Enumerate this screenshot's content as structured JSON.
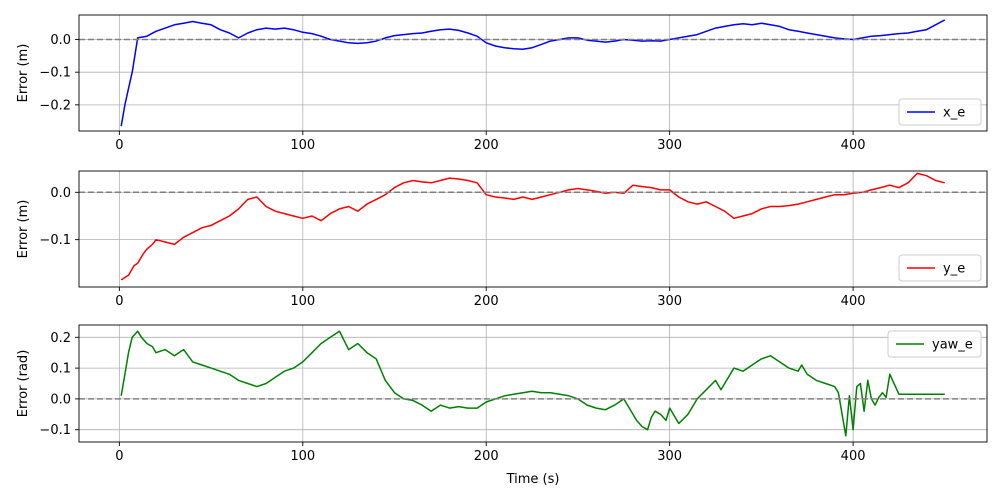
{
  "chart_data": [
    {
      "type": "line",
      "xlabel": "",
      "ylabel": "Error (m)",
      "xlim": [
        -22,
        473
      ],
      "ylim": [
        -0.28,
        0.075
      ],
      "xticks": [
        0,
        100,
        200,
        300,
        400
      ],
      "xtick_labels": [
        "0",
        "100",
        "200",
        "300",
        "400"
      ],
      "yticks": [
        0.0,
        -0.1,
        -0.2
      ],
      "ytick_labels": [
        "0.0",
        "−0.1",
        "−0.2"
      ],
      "grid": true,
      "reference_line": 0,
      "legend_position": "lower-right",
      "series": [
        {
          "name": "x_e",
          "color": "#0000ff",
          "x": [
            1,
            3,
            5,
            7,
            10,
            15,
            20,
            25,
            30,
            35,
            40,
            45,
            50,
            55,
            60,
            65,
            70,
            75,
            80,
            85,
            90,
            95,
            100,
            105,
            110,
            115,
            120,
            125,
            130,
            135,
            140,
            145,
            150,
            155,
            160,
            165,
            170,
            175,
            180,
            185,
            190,
            195,
            200,
            205,
            210,
            215,
            220,
            225,
            230,
            235,
            240,
            245,
            250,
            255,
            260,
            265,
            270,
            275,
            280,
            285,
            290,
            295,
            300,
            305,
            310,
            315,
            320,
            325,
            330,
            335,
            340,
            345,
            350,
            355,
            360,
            365,
            370,
            375,
            380,
            385,
            390,
            395,
            400,
            405,
            410,
            415,
            420,
            425,
            430,
            435,
            440,
            445,
            450
          ],
          "values": [
            -0.265,
            -0.2,
            -0.15,
            -0.1,
            0.005,
            0.01,
            0.025,
            0.035,
            0.045,
            0.05,
            0.055,
            0.05,
            0.045,
            0.03,
            0.02,
            0.005,
            0.02,
            0.03,
            0.035,
            0.032,
            0.035,
            0.03,
            0.022,
            0.018,
            0.01,
            0.0,
            -0.005,
            -0.01,
            -0.012,
            -0.01,
            -0.005,
            0.005,
            0.012,
            0.015,
            0.018,
            0.02,
            0.025,
            0.03,
            0.032,
            0.028,
            0.02,
            0.01,
            -0.01,
            -0.02,
            -0.025,
            -0.028,
            -0.03,
            -0.025,
            -0.015,
            -0.005,
            0.0,
            0.005,
            0.005,
            -0.002,
            -0.005,
            -0.008,
            -0.005,
            0.0,
            -0.002,
            -0.005,
            -0.004,
            -0.005,
            0.0,
            0.005,
            0.01,
            0.015,
            0.025,
            0.035,
            0.04,
            0.045,
            0.048,
            0.045,
            0.05,
            0.045,
            0.04,
            0.03,
            0.025,
            0.02,
            0.015,
            0.01,
            0.005,
            0.002,
            0.0,
            0.005,
            0.01,
            0.012,
            0.015,
            0.018,
            0.02,
            0.025,
            0.03,
            0.045,
            0.06
          ]
        }
      ]
    },
    {
      "type": "line",
      "xlabel": "",
      "ylabel": "Error (m)",
      "xlim": [
        -22,
        473
      ],
      "ylim": [
        -0.2,
        0.045
      ],
      "xticks": [
        0,
        100,
        200,
        300,
        400
      ],
      "xtick_labels": [
        "0",
        "100",
        "200",
        "300",
        "400"
      ],
      "yticks": [
        0.0,
        -0.1
      ],
      "ytick_labels": [
        "0.0",
        "−0.1"
      ],
      "grid": true,
      "reference_line": 0,
      "legend_position": "lower-right",
      "series": [
        {
          "name": "y_e",
          "color": "#ff0000",
          "x": [
            1,
            3,
            5,
            8,
            10,
            13,
            15,
            18,
            20,
            25,
            30,
            35,
            40,
            45,
            50,
            55,
            60,
            65,
            70,
            75,
            80,
            85,
            90,
            95,
            100,
            105,
            110,
            115,
            120,
            125,
            130,
            135,
            140,
            145,
            150,
            155,
            160,
            165,
            170,
            175,
            180,
            185,
            190,
            195,
            200,
            205,
            210,
            215,
            220,
            225,
            230,
            235,
            240,
            245,
            250,
            255,
            260,
            265,
            270,
            275,
            280,
            285,
            290,
            295,
            300,
            305,
            310,
            315,
            320,
            325,
            330,
            335,
            340,
            345,
            350,
            355,
            360,
            365,
            370,
            375,
            380,
            385,
            390,
            395,
            400,
            405,
            410,
            415,
            420,
            425,
            430,
            435,
            440,
            445,
            450
          ],
          "values": [
            -0.185,
            -0.18,
            -0.175,
            -0.155,
            -0.15,
            -0.13,
            -0.12,
            -0.11,
            -0.1,
            -0.105,
            -0.11,
            -0.095,
            -0.085,
            -0.075,
            -0.07,
            -0.06,
            -0.05,
            -0.035,
            -0.015,
            -0.01,
            -0.03,
            -0.04,
            -0.045,
            -0.05,
            -0.055,
            -0.05,
            -0.06,
            -0.045,
            -0.035,
            -0.03,
            -0.04,
            -0.025,
            -0.015,
            -0.005,
            0.01,
            0.02,
            0.025,
            0.022,
            0.02,
            0.025,
            0.03,
            0.028,
            0.025,
            0.02,
            -0.005,
            -0.01,
            -0.012,
            -0.015,
            -0.01,
            -0.015,
            -0.01,
            -0.005,
            0.0,
            0.005,
            0.008,
            0.005,
            0.002,
            -0.002,
            0.0,
            -0.002,
            0.015,
            0.012,
            0.01,
            0.005,
            0.005,
            -0.01,
            -0.02,
            -0.025,
            -0.02,
            -0.03,
            -0.04,
            -0.055,
            -0.05,
            -0.045,
            -0.035,
            -0.03,
            -0.03,
            -0.028,
            -0.025,
            -0.02,
            -0.015,
            -0.01,
            -0.005,
            -0.005,
            -0.002,
            0.0,
            0.005,
            0.01,
            0.015,
            0.01,
            0.02,
            0.04,
            0.035,
            0.025,
            0.02
          ]
        }
      ]
    },
    {
      "type": "line",
      "xlabel": "Time (s)",
      "ylabel": "Error (rad)",
      "xlim": [
        -22,
        473
      ],
      "ylim": [
        -0.14,
        0.24
      ],
      "xticks": [
        0,
        100,
        200,
        300,
        400
      ],
      "xtick_labels": [
        "0",
        "100",
        "200",
        "300",
        "400"
      ],
      "yticks": [
        0.2,
        0.1,
        0.0,
        -0.1
      ],
      "ytick_labels": [
        "0.2",
        "0.1",
        "0.0",
        "−0.1"
      ],
      "grid": true,
      "reference_line": 0,
      "legend_position": "upper-right",
      "series": [
        {
          "name": "yaw_e",
          "color": "#008000",
          "x": [
            1,
            3,
            5,
            7,
            10,
            12,
            15,
            18,
            20,
            25,
            30,
            35,
            40,
            45,
            50,
            55,
            60,
            65,
            70,
            75,
            80,
            85,
            90,
            95,
            100,
            105,
            110,
            115,
            120,
            125,
            130,
            135,
            140,
            145,
            150,
            155,
            160,
            165,
            170,
            175,
            180,
            185,
            190,
            195,
            200,
            205,
            210,
            215,
            220,
            225,
            230,
            235,
            240,
            245,
            250,
            255,
            260,
            265,
            270,
            275,
            278,
            282,
            285,
            288,
            290,
            292,
            295,
            298,
            300,
            303,
            305,
            310,
            315,
            320,
            325,
            328,
            330,
            335,
            340,
            345,
            350,
            355,
            360,
            365,
            370,
            372,
            375,
            380,
            385,
            390,
            392,
            394,
            396,
            398,
            400,
            402,
            404,
            406,
            408,
            410,
            412,
            414,
            416,
            418,
            420,
            425,
            430,
            435,
            440,
            445,
            450
          ],
          "values": [
            0.01,
            0.08,
            0.15,
            0.2,
            0.22,
            0.2,
            0.18,
            0.17,
            0.15,
            0.16,
            0.14,
            0.16,
            0.12,
            0.11,
            0.1,
            0.09,
            0.08,
            0.06,
            0.05,
            0.04,
            0.05,
            0.07,
            0.09,
            0.1,
            0.12,
            0.15,
            0.18,
            0.2,
            0.22,
            0.16,
            0.18,
            0.15,
            0.13,
            0.06,
            0.02,
            0.0,
            -0.005,
            -0.02,
            -0.04,
            -0.02,
            -0.03,
            -0.025,
            -0.03,
            -0.03,
            -0.01,
            0.0,
            0.01,
            0.015,
            0.02,
            0.025,
            0.02,
            0.02,
            0.015,
            0.01,
            0.0,
            -0.02,
            -0.03,
            -0.035,
            -0.02,
            0.0,
            -0.03,
            -0.07,
            -0.09,
            -0.1,
            -0.06,
            -0.04,
            -0.05,
            -0.07,
            -0.03,
            -0.06,
            -0.08,
            -0.05,
            0.0,
            0.03,
            0.06,
            0.03,
            0.05,
            0.1,
            0.09,
            0.11,
            0.13,
            0.14,
            0.12,
            0.1,
            0.09,
            0.11,
            0.08,
            0.06,
            0.05,
            0.04,
            0.02,
            -0.05,
            -0.12,
            0.01,
            -0.1,
            0.04,
            0.05,
            -0.04,
            0.06,
            0.0,
            -0.02,
            0.005,
            0.02,
            0.005,
            0.08,
            0.015,
            0.015,
            0.015,
            0.015,
            0.015,
            0.015
          ]
        }
      ]
    }
  ]
}
